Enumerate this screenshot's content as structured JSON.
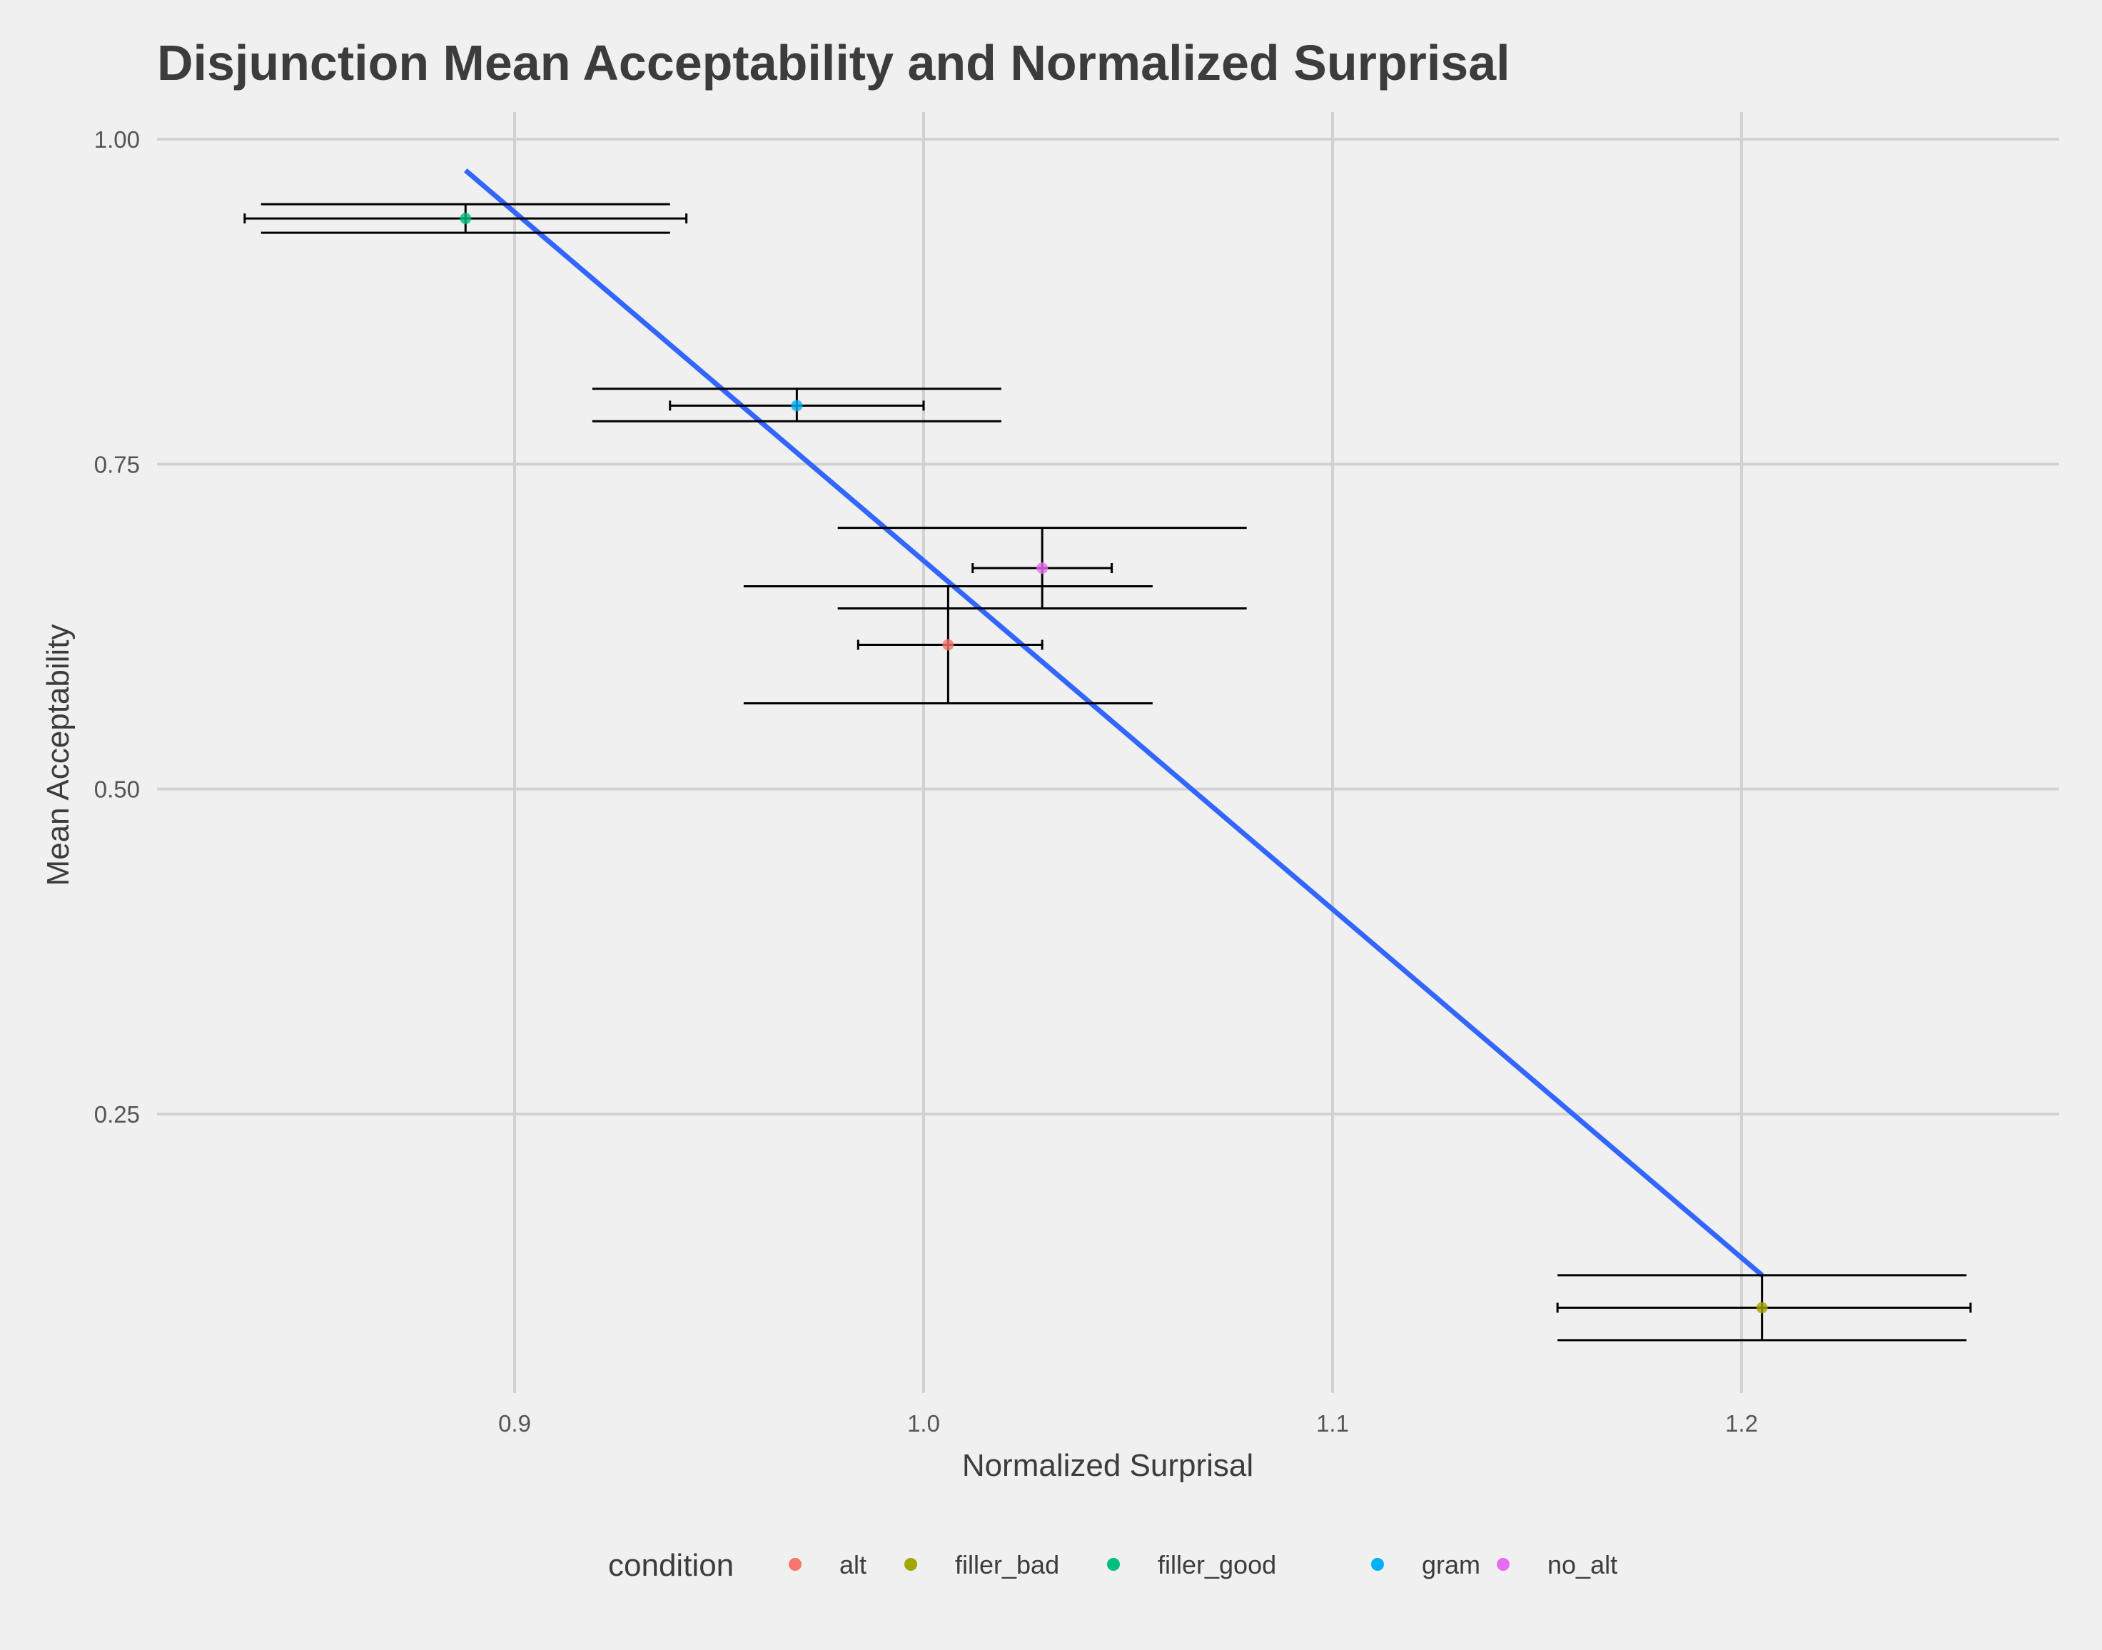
{
  "chart_data": {
    "type": "scatter",
    "title": "Disjunction Mean Acceptability and Normalized Surprisal",
    "xlabel": "Normalized Surprisal",
    "ylabel": "Mean Acceptability",
    "xlim": [
      0.813,
      1.278
    ],
    "ylim": [
      0.035,
      1.02
    ],
    "x_ticks": [
      {
        "value": 0.9,
        "label": "0.9"
      },
      {
        "value": 1.0,
        "label": "1.0"
      },
      {
        "value": 1.1,
        "label": "1.1"
      },
      {
        "value": 1.2,
        "label": "1.2"
      }
    ],
    "y_ticks": [
      {
        "value": 0.25,
        "label": "0.25"
      },
      {
        "value": 0.5,
        "label": "0.50"
      },
      {
        "value": 0.75,
        "label": "0.75"
      },
      {
        "value": 1.0,
        "label": "1.00"
      }
    ],
    "grid": true,
    "legend": {
      "title": "condition",
      "position": "bottom"
    },
    "series": [
      {
        "name": "alt",
        "color": "#F8766D",
        "x": 1.006,
        "y": 0.611,
        "x_err_inner": [
          0.984,
          1.029
        ],
        "x_err_outer_upper": [
          0.956,
          1.056
        ],
        "x_err_outer_lower": [
          0.956,
          1.056
        ],
        "y_err": [
          0.566,
          0.656
        ]
      },
      {
        "name": "filler_bad",
        "color": "#A3A500",
        "x": 1.205,
        "y": 0.101,
        "x_err_inner": [
          1.155,
          1.256
        ],
        "x_err_outer_upper": [
          1.155,
          1.255
        ],
        "x_err_outer_lower": [
          1.155,
          1.255
        ],
        "y_err": [
          0.076,
          0.126
        ]
      },
      {
        "name": "filler_good",
        "color": "#00BF7D",
        "x": 0.888,
        "y": 0.939,
        "x_err_inner": [
          0.834,
          0.942
        ],
        "x_err_outer_upper": [
          0.838,
          0.938
        ],
        "x_err_outer_lower": [
          0.838,
          0.938
        ],
        "y_err": [
          0.928,
          0.95
        ]
      },
      {
        "name": "gram",
        "color": "#00B0F6",
        "x": 0.969,
        "y": 0.795,
        "x_err_inner": [
          0.938,
          1.0
        ],
        "x_err_outer_upper": [
          0.919,
          1.019
        ],
        "x_err_outer_lower": [
          0.919,
          1.019
        ],
        "y_err": [
          0.783,
          0.808
        ]
      },
      {
        "name": "no_alt",
        "color": "#E76BF3",
        "x": 1.029,
        "y": 0.67,
        "x_err_inner": [
          1.012,
          1.046
        ],
        "x_err_outer_upper": [
          0.979,
          1.079
        ],
        "x_err_outer_lower": [
          0.979,
          1.079
        ],
        "y_err": [
          0.639,
          0.701
        ]
      }
    ],
    "fit_line": {
      "color": "#3366ff",
      "x": [
        0.888,
        1.205
      ],
      "y": [
        0.976,
        0.126
      ]
    }
  }
}
